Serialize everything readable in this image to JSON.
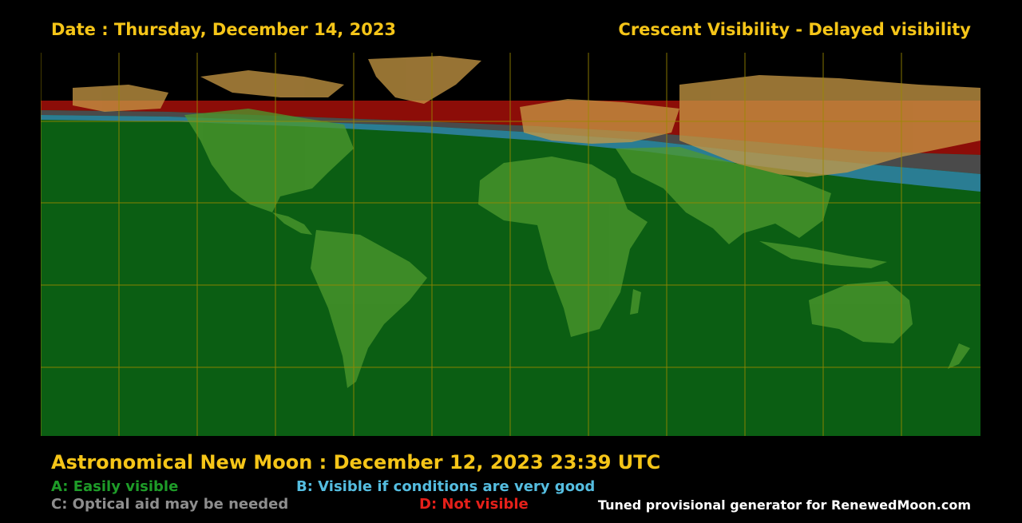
{
  "header": {
    "date_title": "Date : Thursday, December 14, 2023",
    "visibility_title": "Crescent Visibility - Delayed visibility"
  },
  "footer": {
    "new_moon": "Astronomical New Moon : December 12, 2023 23:39 UTC",
    "credit": "Tuned provisional generator for RenewedMoon.com"
  },
  "legend": {
    "a": {
      "label": "A: Easily visible",
      "color": "#1e9c28"
    },
    "b": {
      "label": "B: Visible if conditions are very good",
      "color": "#55bde0"
    },
    "c": {
      "label": "C: Optical aid may be needed",
      "color": "#8e8e8e"
    },
    "d": {
      "label": "D: Not visible",
      "color": "#e5201a"
    }
  },
  "colors": {
    "title": "#f5c518",
    "zone_a": "#0b5e13",
    "zone_b": "#2a7d93",
    "zone_c": "#4a4a4a",
    "zone_d": "#8c0d08",
    "grid": "#9a8a00",
    "land_visible": "#4e9a2e",
    "land_unlit": "#c99a45"
  }
}
